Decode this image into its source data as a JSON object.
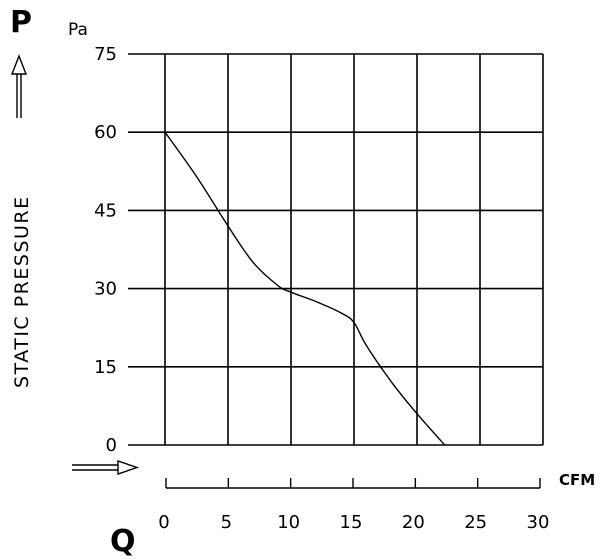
{
  "chart_data": {
    "type": "line",
    "y_symbol": "P",
    "y_unit": "Pa",
    "ylabel": "STATIC PRESSURE",
    "x_symbol": "Q",
    "x_unit": "CFM",
    "xlim": [
      0,
      30
    ],
    "ylim": [
      0,
      75
    ],
    "x_ticks": [
      0,
      5,
      10,
      15,
      20,
      25,
      30
    ],
    "y_ticks": [
      0,
      15,
      30,
      45,
      60,
      75
    ],
    "grid": true,
    "series": [
      {
        "x": [
          0,
          2.5,
          5,
          7,
          9,
          10,
          12,
          14,
          15,
          16,
          18,
          20,
          22.2
        ],
        "y": [
          60,
          51.5,
          42,
          35,
          30.5,
          29.3,
          27.5,
          25.3,
          23.5,
          19,
          12,
          6,
          0
        ]
      }
    ]
  }
}
